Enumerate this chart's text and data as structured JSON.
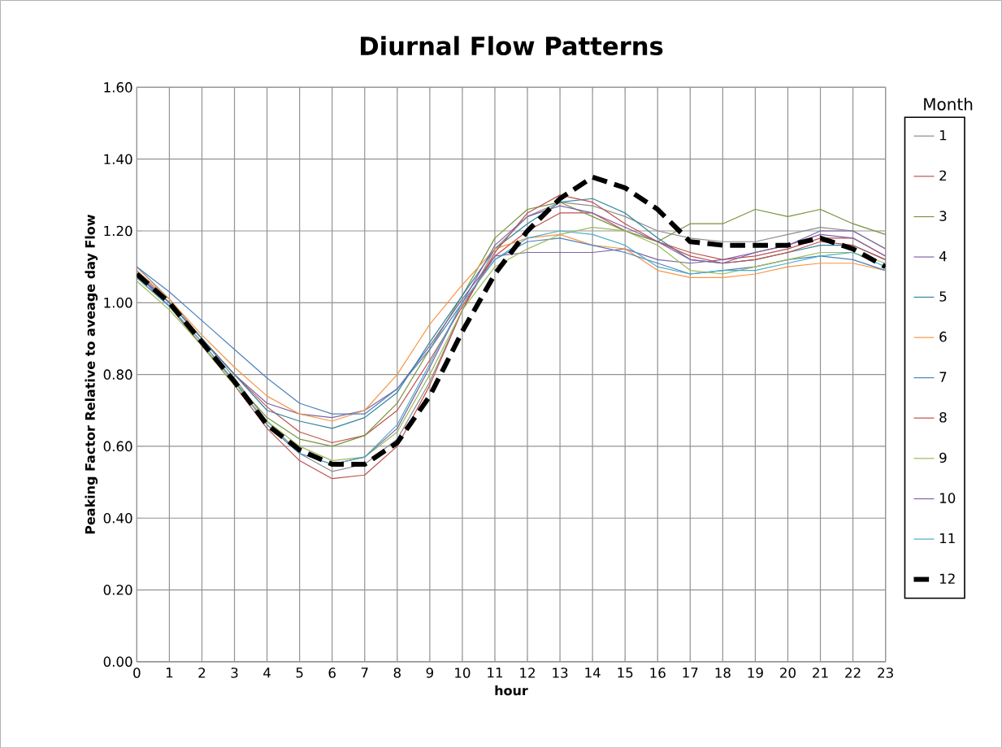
{
  "chart_data": {
    "type": "line",
    "title": "Diurnal Flow Patterns",
    "xlabel": "hour",
    "ylabel": "Peaking Factor Relative to aveage day Flow",
    "legend_title": "Month",
    "legend": "right",
    "grid": true,
    "marker": "none",
    "x": [
      0,
      1,
      2,
      3,
      4,
      5,
      6,
      7,
      8,
      9,
      10,
      11,
      12,
      13,
      14,
      15,
      16,
      17,
      18,
      19,
      20,
      21,
      22,
      23
    ],
    "xlim": [
      0,
      23
    ],
    "xticks": [
      0,
      1,
      2,
      3,
      4,
      5,
      6,
      7,
      8,
      9,
      10,
      11,
      12,
      13,
      14,
      15,
      16,
      17,
      18,
      19,
      20,
      21,
      22,
      23
    ],
    "ylim": [
      0,
      1.6
    ],
    "yticks": [
      {
        "value": 0,
        "label": "0.00"
      },
      {
        "value": 0.2,
        "label": "0.20"
      },
      {
        "value": 0.4,
        "label": "0.40"
      },
      {
        "value": 0.6,
        "label": "0.60"
      },
      {
        "value": 0.8,
        "label": "0.80"
      },
      {
        "value": 1.0,
        "label": "1.00"
      },
      {
        "value": 1.2,
        "label": "1.20"
      },
      {
        "value": 1.4,
        "label": "1.40"
      },
      {
        "value": 1.6,
        "label": "1.60"
      }
    ],
    "series": [
      {
        "name": "1",
        "color": "#8c8c8c",
        "line_style": "solid",
        "values": [
          1.1,
          1.01,
          0.9,
          0.79,
          0.67,
          0.58,
          0.53,
          0.55,
          0.62,
          0.78,
          0.98,
          1.15,
          1.24,
          1.28,
          1.27,
          1.24,
          1.2,
          1.18,
          1.17,
          1.17,
          1.19,
          1.21,
          1.2,
          1.15
        ]
      },
      {
        "name": "2",
        "color": "#c0504d",
        "line_style": "solid",
        "values": [
          1.09,
          1.0,
          0.9,
          0.8,
          0.71,
          0.64,
          0.61,
          0.63,
          0.7,
          0.84,
          0.99,
          1.13,
          1.2,
          1.25,
          1.25,
          1.2,
          1.17,
          1.14,
          1.12,
          1.13,
          1.15,
          1.18,
          1.18,
          1.13
        ]
      },
      {
        "name": "3",
        "color": "#77933c",
        "line_style": "solid",
        "values": [
          1.07,
          0.99,
          0.88,
          0.78,
          0.68,
          0.62,
          0.6,
          0.63,
          0.72,
          0.87,
          1.02,
          1.18,
          1.26,
          1.28,
          1.24,
          1.2,
          1.17,
          1.22,
          1.22,
          1.26,
          1.24,
          1.26,
          1.22,
          1.19
        ]
      },
      {
        "name": "4",
        "color": "#8064a2",
        "line_style": "solid",
        "values": [
          1.08,
          1.0,
          0.9,
          0.8,
          0.72,
          0.69,
          0.68,
          0.7,
          0.76,
          0.88,
          1.01,
          1.13,
          1.14,
          1.14,
          1.14,
          1.15,
          1.12,
          1.11,
          1.12,
          1.14,
          1.16,
          1.2,
          1.2,
          1.15
        ]
      },
      {
        "name": "5",
        "color": "#31859c",
        "line_style": "solid",
        "values": [
          1.08,
          1.0,
          0.9,
          0.8,
          0.7,
          0.67,
          0.65,
          0.68,
          0.75,
          0.89,
          1.02,
          1.15,
          1.22,
          1.28,
          1.29,
          1.25,
          1.18,
          1.12,
          1.11,
          1.12,
          1.14,
          1.16,
          1.16,
          1.12
        ]
      },
      {
        "name": "6",
        "color": "#f79646",
        "line_style": "solid",
        "values": [
          1.09,
          1.01,
          0.91,
          0.82,
          0.74,
          0.69,
          0.67,
          0.7,
          0.8,
          0.94,
          1.05,
          1.15,
          1.18,
          1.19,
          1.16,
          1.15,
          1.09,
          1.07,
          1.07,
          1.08,
          1.1,
          1.11,
          1.11,
          1.09
        ]
      },
      {
        "name": "7",
        "color": "#4f81bd",
        "line_style": "solid",
        "values": [
          1.1,
          1.03,
          0.95,
          0.87,
          0.79,
          0.72,
          0.69,
          0.69,
          0.76,
          0.87,
          1.0,
          1.12,
          1.17,
          1.18,
          1.16,
          1.14,
          1.11,
          1.08,
          1.09,
          1.1,
          1.12,
          1.13,
          1.12,
          1.09
        ]
      },
      {
        "name": "8",
        "color": "#c0504d",
        "line_style": "solid",
        "values": [
          1.07,
          0.99,
          0.88,
          0.77,
          0.65,
          0.56,
          0.51,
          0.52,
          0.6,
          0.77,
          0.98,
          1.14,
          1.25,
          1.3,
          1.28,
          1.22,
          1.17,
          1.13,
          1.11,
          1.12,
          1.14,
          1.17,
          1.16,
          1.12
        ]
      },
      {
        "name": "9",
        "color": "#9bbb59",
        "line_style": "solid",
        "values": [
          1.06,
          0.98,
          0.88,
          0.77,
          0.67,
          0.6,
          0.56,
          0.57,
          0.64,
          0.8,
          0.98,
          1.1,
          1.15,
          1.19,
          1.21,
          1.2,
          1.16,
          1.09,
          1.08,
          1.1,
          1.12,
          1.14,
          1.14,
          1.11
        ]
      },
      {
        "name": "10",
        "color": "#7f5fa8",
        "line_style": "solid",
        "values": [
          1.08,
          0.99,
          0.89,
          0.78,
          0.66,
          0.58,
          0.55,
          0.57,
          0.65,
          0.82,
          1.0,
          1.16,
          1.24,
          1.27,
          1.25,
          1.21,
          1.17,
          1.12,
          1.11,
          1.14,
          1.16,
          1.19,
          1.18,
          1.13
        ]
      },
      {
        "name": "11",
        "color": "#4bacc6",
        "line_style": "solid",
        "values": [
          1.07,
          0.99,
          0.89,
          0.78,
          0.66,
          0.58,
          0.55,
          0.57,
          0.66,
          0.83,
          1.0,
          1.12,
          1.18,
          1.2,
          1.19,
          1.16,
          1.1,
          1.08,
          1.09,
          1.09,
          1.11,
          1.13,
          1.14,
          1.1
        ]
      },
      {
        "name": "12",
        "color": "#000000",
        "line_style": "dashed",
        "values": [
          1.08,
          1.0,
          0.89,
          0.78,
          0.66,
          0.59,
          0.55,
          0.55,
          0.61,
          0.74,
          0.92,
          1.08,
          1.2,
          1.29,
          1.35,
          1.32,
          1.26,
          1.17,
          1.16,
          1.16,
          1.16,
          1.18,
          1.15,
          1.1
        ]
      }
    ]
  }
}
